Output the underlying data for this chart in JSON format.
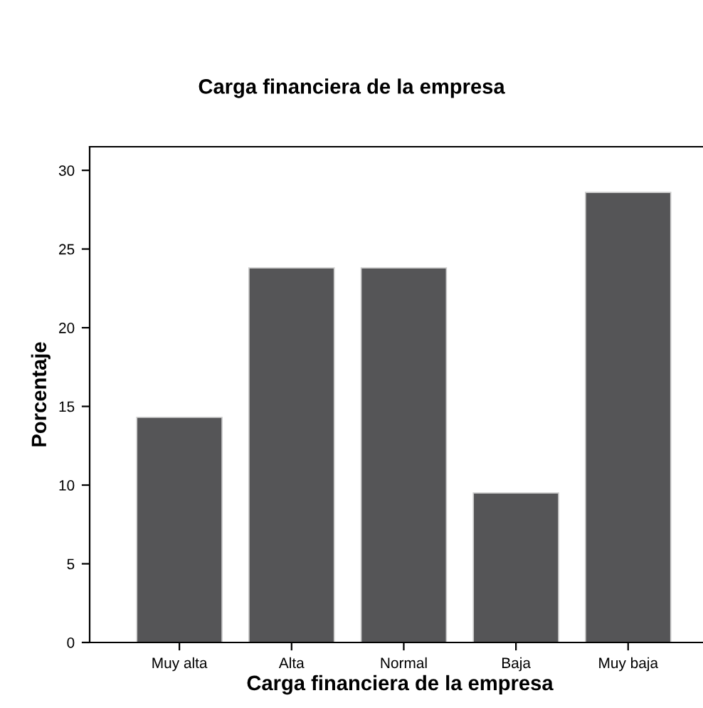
{
  "chart_data": {
    "type": "bar",
    "title": "Carga financiera de la empresa",
    "xlabel": "Carga financiera de la empresa",
    "ylabel": "Porcentaje",
    "categories": [
      "Muy alta",
      "Alta",
      "Normal",
      "Baja",
      "Muy baja"
    ],
    "values": [
      14.3,
      23.8,
      23.8,
      9.5,
      28.6
    ],
    "color": "#555557",
    "ylim": [
      0,
      31.5
    ],
    "yticks": [
      0,
      5,
      10,
      15,
      20,
      25,
      30
    ],
    "grid": false
  }
}
